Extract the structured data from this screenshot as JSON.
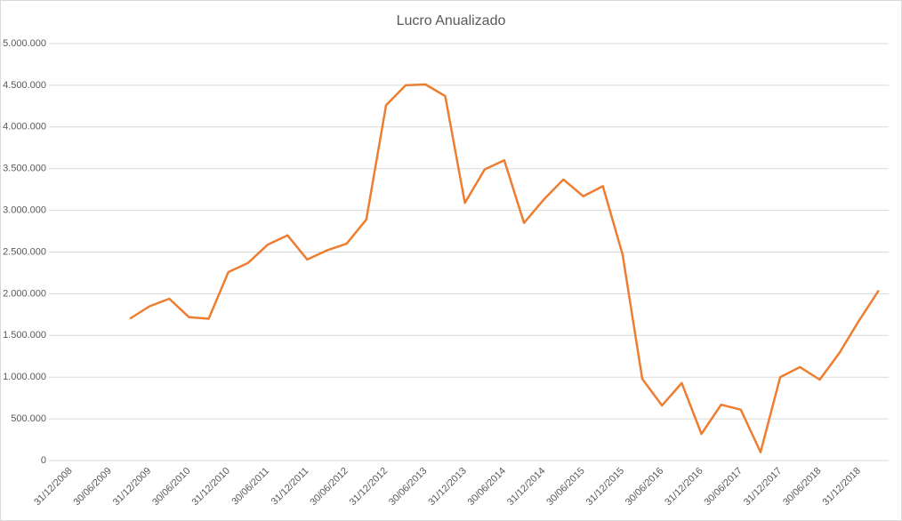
{
  "chart_data": {
    "type": "line",
    "title": "Lucro Anualizado",
    "categories": [
      "31/12/2008",
      null,
      "30/06/2009",
      null,
      "31/12/2009",
      null,
      "30/06/2010",
      null,
      "31/12/2010",
      null,
      "30/06/2011",
      null,
      "31/12/2011",
      null,
      "30/06/2012",
      null,
      "31/12/2012",
      null,
      "30/06/2013",
      null,
      "31/12/2013",
      null,
      "30/06/2014",
      null,
      "31/12/2014",
      null,
      "30/06/2015",
      null,
      "31/12/2015",
      null,
      "30/06/2016",
      null,
      "31/12/2016",
      null,
      "30/06/2017",
      null,
      "31/12/2017",
      null,
      "30/06/2018",
      null,
      "31/12/2018",
      null
    ],
    "series": [
      {
        "color": "#ed7d31",
        "values": [
          null,
          null,
          null,
          1700000,
          1850000,
          1940000,
          1720000,
          1700000,
          2260000,
          2370000,
          2590000,
          2700000,
          2410000,
          2520000,
          2600000,
          2890000,
          4260000,
          4500000,
          4510000,
          4370000,
          3090000,
          3490000,
          3600000,
          2850000,
          3130000,
          3370000,
          3170000,
          3290000,
          2470000,
          980000,
          660000,
          930000,
          320000,
          670000,
          610000,
          100000,
          1000000,
          1120000,
          970000,
          1290000,
          1680000,
          2040000
        ]
      }
    ],
    "ylim": [
      0,
      5000000
    ],
    "yticks": [
      0,
      {
        "value": 500000,
        "label": "500.000"
      },
      {
        "value": 1000000,
        "label": "1.000.000"
      },
      {
        "value": 1500000,
        "label": "1.500.000"
      },
      {
        "value": 2000000,
        "label": "2.000.000"
      },
      {
        "value": 2500000,
        "label": "2.500.000"
      },
      {
        "value": 3000000,
        "label": "3.000.000"
      },
      {
        "value": 3500000,
        "label": "3.500.000"
      },
      {
        "value": 4000000,
        "label": "4.000.000"
      },
      {
        "value": 4500000,
        "label": "4.500.000"
      },
      {
        "value": 5000000,
        "label": "5.000.000"
      }
    ],
    "grid": true
  }
}
